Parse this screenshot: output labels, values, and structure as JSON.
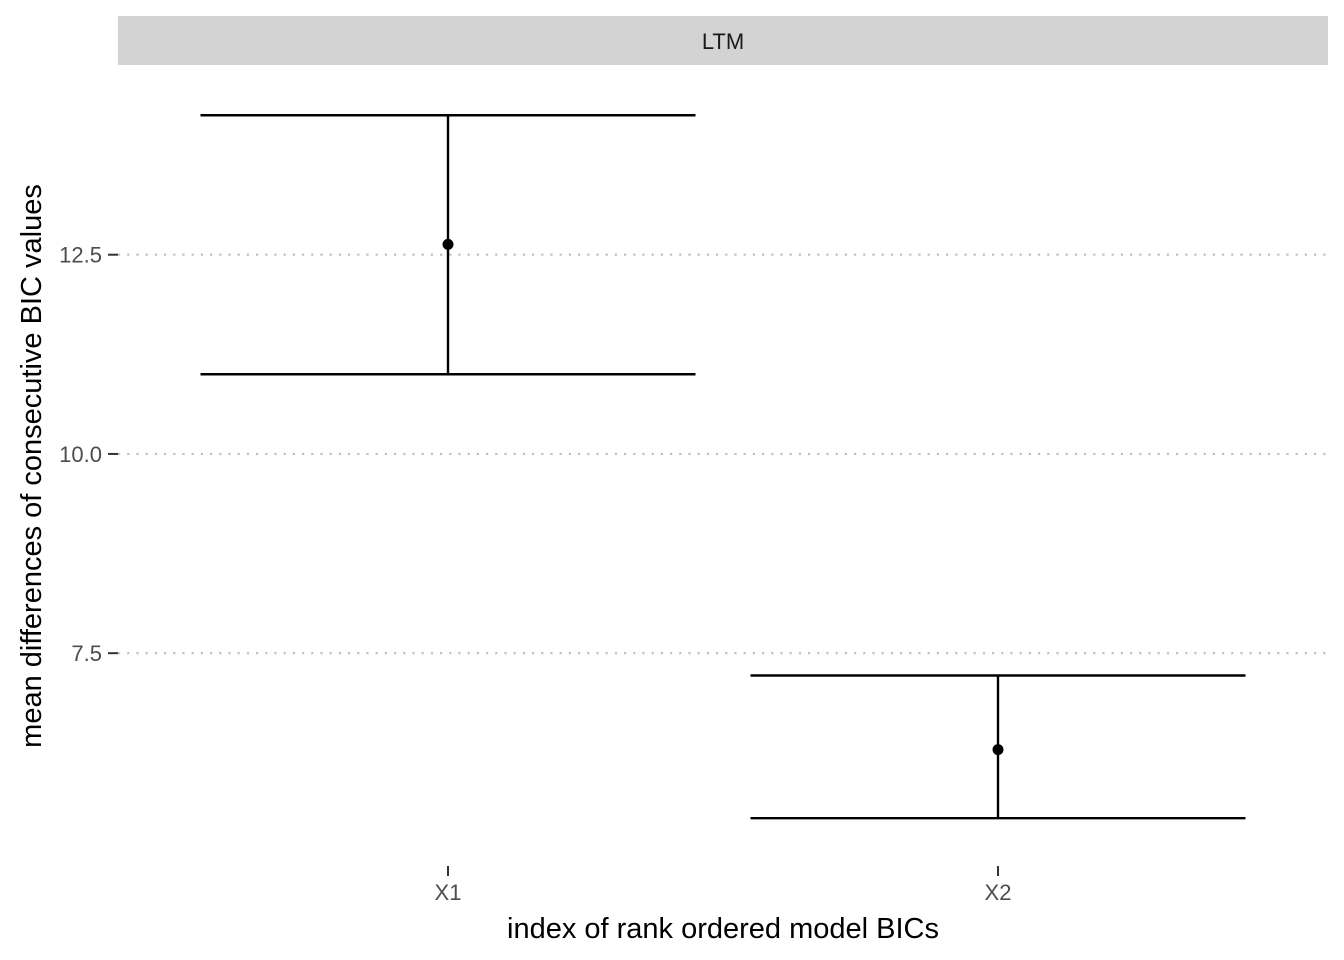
{
  "chart_data": {
    "type": "errorbar",
    "facet_label": "LTM",
    "xlabel": "index of rank ordered model BICs",
    "ylabel": "mean differences of consecutive BIC values",
    "categories": [
      "X1",
      "X2"
    ],
    "series": [
      {
        "values": [
          12.63,
          6.29
        ],
        "lower": [
          11.0,
          5.43
        ],
        "upper": [
          14.25,
          7.22
        ]
      }
    ],
    "yticks": [
      7.5,
      10.0,
      12.5
    ],
    "ytick_labels": [
      "7.5",
      "10.0",
      "12.5"
    ],
    "ylim": [
      4.93,
      14.78
    ],
    "grid": "horizontal-major-dotted",
    "legend": "none",
    "colors": {
      "strip_background": "#d3d3d3",
      "grid": "#bfbfbf",
      "mark": "#000000",
      "tick_text": "#4d4d4d"
    }
  }
}
